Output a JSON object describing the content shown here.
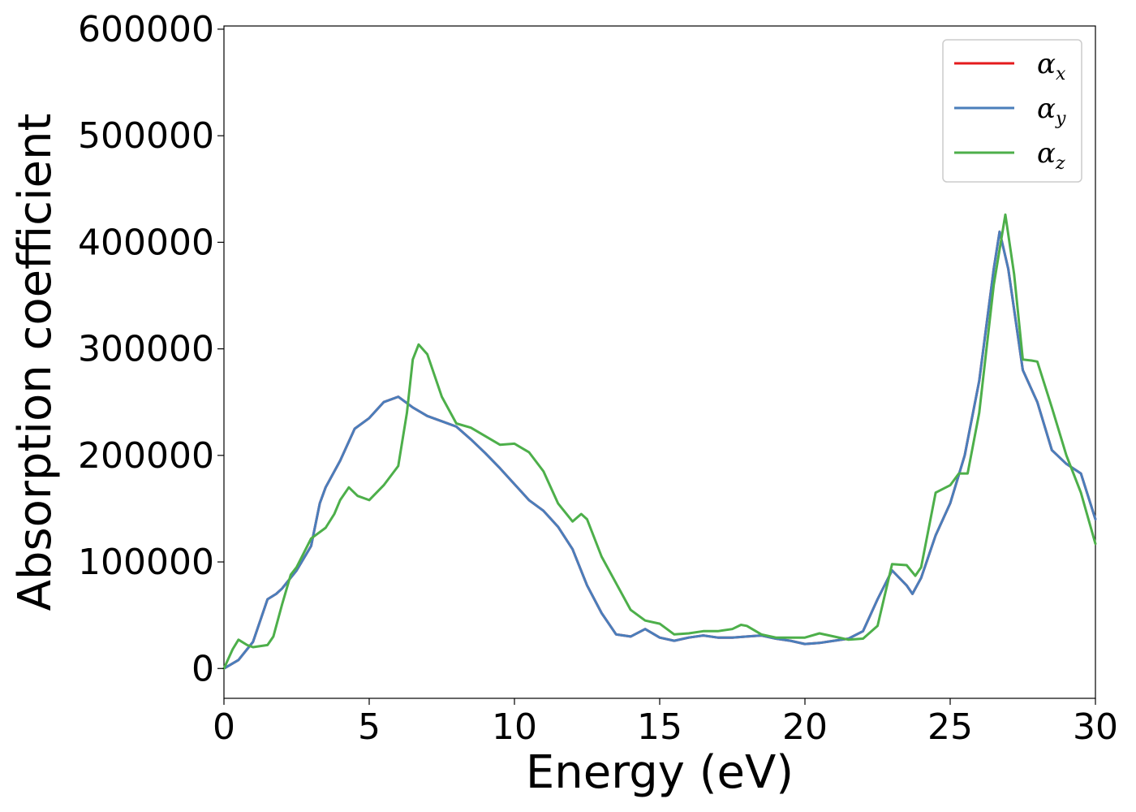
{
  "chart_data": {
    "type": "line",
    "title": "",
    "xlabel": "Energy (eV)",
    "ylabel": "Absorption coefficient",
    "xlim": [
      0,
      30
    ],
    "ylim": [
      -28000,
      603000
    ],
    "xticks": [
      0,
      5,
      10,
      15,
      20,
      25,
      30
    ],
    "yticks": [
      0,
      100000,
      200000,
      300000,
      400000,
      500000,
      600000
    ],
    "xtick_labels": [
      "0",
      "5",
      "10",
      "15",
      "20",
      "25",
      "30"
    ],
    "ytick_labels": [
      "0",
      "100000",
      "200000",
      "300000",
      "400000",
      "500000",
      "600000"
    ],
    "grid": false,
    "legend_position": "top-right",
    "series": [
      {
        "name": "α",
        "subscript": "x",
        "color": "#e41a1c",
        "x": [
          0,
          0.5,
          1.0,
          1.5,
          1.8,
          2.0,
          2.5,
          3.0,
          3.3,
          3.5,
          4.0,
          4.5,
          5.0,
          5.5,
          6.0,
          6.5,
          7.0,
          7.5,
          8.0,
          8.5,
          9.0,
          9.5,
          10.0,
          10.5,
          11.0,
          11.5,
          12.0,
          12.5,
          13.0,
          13.5,
          14.0,
          14.5,
          15.0,
          15.5,
          16.0,
          16.5,
          17.0,
          17.5,
          18.0,
          18.5,
          19.0,
          19.5,
          20.0,
          20.5,
          21.0,
          21.5,
          22.0,
          22.5,
          23.0,
          23.5,
          23.7,
          24.0,
          24.5,
          25.0,
          25.5,
          26.0,
          26.5,
          26.7,
          27.0,
          27.5,
          28.0,
          28.5,
          29.0,
          29.5,
          30.0
        ],
        "y": [
          0,
          8000,
          25000,
          65000,
          70000,
          75000,
          92000,
          115000,
          155000,
          170000,
          195000,
          225000,
          235000,
          250000,
          255000,
          245000,
          237000,
          232000,
          227000,
          215000,
          202000,
          188000,
          173000,
          158000,
          148000,
          133000,
          112000,
          78000,
          52000,
          32000,
          30000,
          37000,
          29000,
          26000,
          29000,
          31000,
          29000,
          29000,
          30000,
          31000,
          28000,
          26000,
          23000,
          24000,
          26000,
          28000,
          35000,
          65000,
          92000,
          78000,
          70000,
          85000,
          125000,
          155000,
          200000,
          270000,
          375000,
          410000,
          375000,
          280000,
          250000,
          205000,
          192000,
          183000,
          140000
        ]
      },
      {
        "name": "α",
        "subscript": "y",
        "color": "#4a7ebb",
        "x": [
          0,
          0.5,
          1.0,
          1.5,
          1.8,
          2.0,
          2.5,
          3.0,
          3.3,
          3.5,
          4.0,
          4.5,
          5.0,
          5.5,
          6.0,
          6.5,
          7.0,
          7.5,
          8.0,
          8.5,
          9.0,
          9.5,
          10.0,
          10.5,
          11.0,
          11.5,
          12.0,
          12.5,
          13.0,
          13.5,
          14.0,
          14.5,
          15.0,
          15.5,
          16.0,
          16.5,
          17.0,
          17.5,
          18.0,
          18.5,
          19.0,
          19.5,
          20.0,
          20.5,
          21.0,
          21.5,
          22.0,
          22.5,
          23.0,
          23.5,
          23.7,
          24.0,
          24.5,
          25.0,
          25.5,
          26.0,
          26.5,
          26.7,
          27.0,
          27.5,
          28.0,
          28.5,
          29.0,
          29.5,
          30.0
        ],
        "y": [
          0,
          8000,
          25000,
          65000,
          70000,
          75000,
          92000,
          115000,
          155000,
          170000,
          195000,
          225000,
          235000,
          250000,
          255000,
          245000,
          237000,
          232000,
          227000,
          215000,
          202000,
          188000,
          173000,
          158000,
          148000,
          133000,
          112000,
          78000,
          52000,
          32000,
          30000,
          37000,
          29000,
          26000,
          29000,
          31000,
          29000,
          29000,
          30000,
          31000,
          28000,
          26000,
          23000,
          24000,
          26000,
          28000,
          35000,
          65000,
          92000,
          78000,
          70000,
          85000,
          125000,
          155000,
          200000,
          270000,
          375000,
          410000,
          375000,
          280000,
          250000,
          205000,
          192000,
          183000,
          140000
        ]
      },
      {
        "name": "α",
        "subscript": "z",
        "color": "#4daf4a",
        "x": [
          0,
          0.3,
          0.5,
          0.8,
          1.0,
          1.5,
          1.7,
          2.0,
          2.3,
          2.5,
          3.0,
          3.5,
          3.8,
          4.0,
          4.3,
          4.6,
          5.0,
          5.5,
          6.0,
          6.3,
          6.5,
          6.7,
          7.0,
          7.5,
          8.0,
          8.5,
          9.0,
          9.5,
          10.0,
          10.5,
          11.0,
          11.5,
          12.0,
          12.3,
          12.5,
          13.0,
          13.5,
          14.0,
          14.5,
          15.0,
          15.5,
          16.0,
          16.5,
          17.0,
          17.5,
          17.8,
          18.0,
          18.5,
          19.0,
          19.5,
          20.0,
          20.5,
          21.0,
          21.5,
          22.0,
          22.5,
          23.0,
          23.5,
          23.8,
          24.0,
          24.5,
          25.0,
          25.3,
          25.6,
          26.0,
          26.5,
          26.9,
          27.2,
          27.5,
          27.8,
          28.0,
          28.5,
          29.0,
          29.5,
          30.0
        ],
        "y": [
          0,
          18000,
          27000,
          22000,
          20000,
          22000,
          30000,
          60000,
          88000,
          95000,
          122000,
          132000,
          145000,
          158000,
          170000,
          162000,
          158000,
          172000,
          190000,
          240000,
          290000,
          304000,
          295000,
          255000,
          230000,
          226000,
          218000,
          210000,
          211000,
          203000,
          185000,
          155000,
          138000,
          145000,
          140000,
          105000,
          80000,
          55000,
          45000,
          42000,
          32000,
          33000,
          35000,
          35000,
          37000,
          41000,
          40000,
          32000,
          29000,
          29000,
          29000,
          33000,
          30000,
          27000,
          28000,
          40000,
          98000,
          97000,
          87000,
          95000,
          165000,
          172000,
          183000,
          183000,
          240000,
          360000,
          426000,
          370000,
          290000,
          289000,
          288000,
          245000,
          200000,
          165000,
          117000
        ]
      }
    ]
  }
}
